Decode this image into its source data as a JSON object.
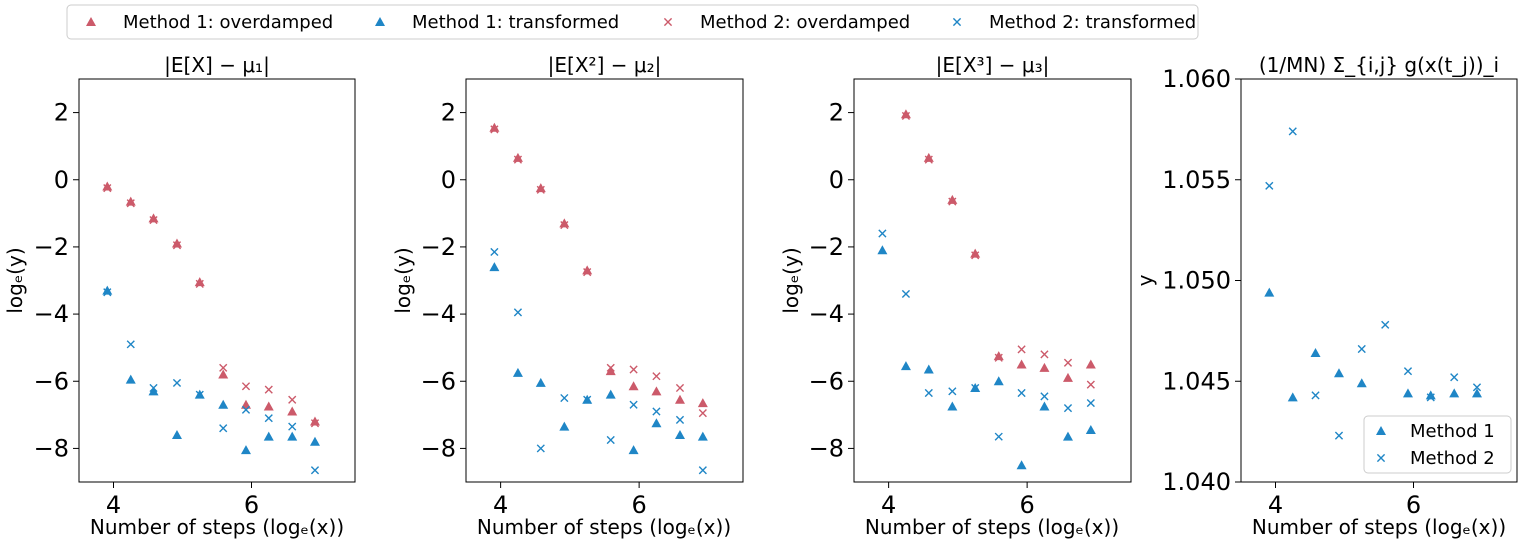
{
  "colors": {
    "overdamped": "#cc5a6a",
    "transformed": "#1f86c6"
  },
  "legend": {
    "entries": [
      {
        "label": "Method 1: overdamped",
        "marker": "triangle",
        "color_key": "overdamped"
      },
      {
        "label": "Method 1: transformed",
        "marker": "triangle",
        "color_key": "transformed"
      },
      {
        "label": "Method 2: overdamped",
        "marker": "x",
        "color_key": "overdamped"
      },
      {
        "label": "Method 2: transformed",
        "marker": "x",
        "color_key": "transformed"
      }
    ]
  },
  "chart_data": [
    {
      "type": "scatter",
      "title": "|E[X] − μ₁|",
      "xlabel": "Number of steps (logₑ(x))",
      "ylabel": "logₑ(y)",
      "xlim": [
        3.5,
        7.5
      ],
      "ylim": [
        -9,
        3
      ],
      "xticks": [
        4,
        6
      ],
      "xtick_labels": [
        "4",
        "6"
      ],
      "yticks": [
        -8,
        -6,
        -4,
        -2,
        0,
        2
      ],
      "ytick_labels": [
        "−8",
        "−6",
        "−4",
        "−2",
        "0",
        "2"
      ],
      "series": [
        {
          "name": "Method 1: overdamped",
          "marker": "triangle",
          "color_key": "overdamped",
          "x": [
            3.91,
            4.25,
            4.58,
            4.92,
            5.25,
            5.59,
            5.92,
            6.25,
            6.59,
            6.92
          ],
          "y": [
            -0.2,
            -0.65,
            -1.15,
            -1.9,
            -3.05,
            -5.8,
            -6.7,
            -6.75,
            -6.9,
            -7.2
          ]
        },
        {
          "name": "Method 1: transformed",
          "marker": "triangle",
          "color_key": "transformed",
          "x": [
            3.91,
            4.25,
            4.58,
            4.92,
            5.25,
            5.59,
            5.92,
            6.25,
            6.59,
            6.92
          ],
          "y": [
            -3.3,
            -5.95,
            -6.3,
            -7.6,
            -6.4,
            -6.7,
            -8.05,
            -7.65,
            -7.65,
            -7.8
          ]
        },
        {
          "name": "Method 2: overdamped",
          "marker": "x",
          "color_key": "overdamped",
          "x": [
            3.91,
            4.25,
            4.58,
            4.92,
            5.25,
            5.59,
            5.92,
            6.25,
            6.59,
            6.92
          ],
          "y": [
            -0.25,
            -0.7,
            -1.2,
            -1.95,
            -3.1,
            -5.6,
            -6.15,
            -6.25,
            -6.55,
            -7.25
          ]
        },
        {
          "name": "Method 2: transformed",
          "marker": "x",
          "color_key": "transformed",
          "x": [
            3.91,
            4.25,
            4.58,
            4.92,
            5.25,
            5.59,
            5.92,
            6.25,
            6.59,
            6.92
          ],
          "y": [
            -3.35,
            -4.9,
            -6.2,
            -6.05,
            -6.4,
            -7.4,
            -6.85,
            -7.1,
            -7.35,
            -8.65
          ]
        }
      ]
    },
    {
      "type": "scatter",
      "title": "|E[X²] − μ₂|",
      "xlabel": "Number of steps (logₑ(x))",
      "ylabel": "logₑ(y)",
      "xlim": [
        3.5,
        7.5
      ],
      "ylim": [
        -9,
        3
      ],
      "xticks": [
        4,
        6
      ],
      "xtick_labels": [
        "4",
        "6"
      ],
      "yticks": [
        -8,
        -6,
        -4,
        -2,
        0,
        2
      ],
      "ytick_labels": [
        "−8",
        "−6",
        "−4",
        "−2",
        "0",
        "2"
      ],
      "series": [
        {
          "name": "Method 1: overdamped",
          "marker": "triangle",
          "color_key": "overdamped",
          "x": [
            3.91,
            4.25,
            4.58,
            4.92,
            5.25,
            5.59,
            5.92,
            6.25,
            6.59,
            6.92
          ],
          "y": [
            1.55,
            0.65,
            -0.25,
            -1.3,
            -2.7,
            -5.7,
            -6.15,
            -6.3,
            -6.55,
            -6.65
          ]
        },
        {
          "name": "Method 1: transformed",
          "marker": "triangle",
          "color_key": "transformed",
          "x": [
            3.91,
            4.25,
            4.58,
            4.92,
            5.25,
            5.59,
            5.92,
            6.25,
            6.59,
            6.92
          ],
          "y": [
            -2.6,
            -5.75,
            -6.05,
            -7.35,
            -6.55,
            -6.4,
            -8.05,
            -7.25,
            -7.6,
            -7.65
          ]
        },
        {
          "name": "Method 2: overdamped",
          "marker": "x",
          "color_key": "overdamped",
          "x": [
            3.91,
            4.25,
            4.58,
            4.92,
            5.25,
            5.59,
            5.92,
            6.25,
            6.59,
            6.92
          ],
          "y": [
            1.5,
            0.6,
            -0.3,
            -1.35,
            -2.75,
            -5.6,
            -5.65,
            -5.85,
            -6.2,
            -6.95
          ]
        },
        {
          "name": "Method 2: transformed",
          "marker": "x",
          "color_key": "transformed",
          "x": [
            3.91,
            4.25,
            4.58,
            4.92,
            5.25,
            5.59,
            5.92,
            6.25,
            6.59,
            6.92
          ],
          "y": [
            -2.15,
            -3.95,
            -8.0,
            -6.5,
            -6.55,
            -7.75,
            -6.7,
            -6.9,
            -7.15,
            -8.65
          ]
        }
      ]
    },
    {
      "type": "scatter",
      "title": "|E[X³] − μ₃|",
      "xlabel": "Number of steps (logₑ(x))",
      "ylabel": "logₑ(y)",
      "xlim": [
        3.5,
        7.5
      ],
      "ylim": [
        -9,
        3
      ],
      "xticks": [
        4,
        6
      ],
      "xtick_labels": [
        "4",
        "6"
      ],
      "yticks": [
        -8,
        -6,
        -4,
        -2,
        0,
        2
      ],
      "ytick_labels": [
        "−8",
        "−6",
        "−4",
        "−2",
        "0",
        "2"
      ],
      "series": [
        {
          "name": "Method 1: overdamped",
          "marker": "triangle",
          "color_key": "overdamped",
          "x": [
            4.25,
            4.58,
            4.92,
            5.25,
            5.59,
            5.92,
            6.25,
            6.59,
            6.92
          ],
          "y": [
            1.95,
            0.65,
            -0.6,
            -2.2,
            -5.25,
            -5.5,
            -5.6,
            -5.9,
            -5.5
          ]
        },
        {
          "name": "Method 1: transformed",
          "marker": "triangle",
          "color_key": "transformed",
          "x": [
            3.91,
            4.25,
            4.58,
            4.92,
            5.25,
            5.59,
            5.92,
            6.25,
            6.59,
            6.92
          ],
          "y": [
            -2.1,
            -5.55,
            -5.65,
            -6.75,
            -6.2,
            -6.0,
            -8.5,
            -6.75,
            -7.65,
            -7.45
          ]
        },
        {
          "name": "Method 2: overdamped",
          "marker": "x",
          "color_key": "overdamped",
          "x": [
            4.25,
            4.58,
            4.92,
            5.25,
            5.59,
            5.92,
            6.25,
            6.59,
            6.92
          ],
          "y": [
            1.9,
            0.6,
            -0.65,
            -2.25,
            -5.3,
            -5.05,
            -5.2,
            -5.45,
            -6.1
          ]
        },
        {
          "name": "Method 2: transformed",
          "marker": "x",
          "color_key": "transformed",
          "x": [
            3.91,
            4.25,
            4.58,
            4.92,
            5.25,
            5.59,
            5.92,
            6.25,
            6.59,
            6.92
          ],
          "y": [
            -1.6,
            -3.4,
            -6.35,
            -6.3,
            -6.2,
            -7.65,
            -6.35,
            -6.45,
            -6.8,
            -6.65
          ]
        }
      ]
    },
    {
      "type": "scatter",
      "title": "(1/MN) Σ_{i,j} g(x(t_j))_i",
      "xlabel": "Number of steps (logₑ(x))",
      "ylabel": "y",
      "xlim": [
        3.5,
        7.5
      ],
      "ylim": [
        1.04,
        1.06
      ],
      "xticks": [
        4,
        6
      ],
      "xtick_labels": [
        "4",
        "6"
      ],
      "yticks": [
        1.04,
        1.045,
        1.05,
        1.055,
        1.06
      ],
      "ytick_labels": [
        "1.040",
        "1.045",
        "1.050",
        "1.055",
        "1.060"
      ],
      "legend_position": "lower-right",
      "legend": [
        {
          "label": "Method 1",
          "marker": "triangle",
          "color_key": "transformed"
        },
        {
          "label": "Method 2",
          "marker": "x",
          "color_key": "transformed"
        }
      ],
      "series": [
        {
          "name": "Method 1",
          "marker": "triangle",
          "color_key": "transformed",
          "x": [
            3.91,
            4.25,
            4.58,
            4.92,
            5.25,
            5.59,
            5.92,
            6.25,
            6.59,
            6.92
          ],
          "y": [
            1.0494,
            1.0442,
            1.0464,
            1.0454,
            1.0449,
            1.043,
            1.0444,
            1.0443,
            1.0444,
            1.0444
          ]
        },
        {
          "name": "Method 2",
          "marker": "x",
          "color_key": "transformed",
          "x": [
            3.91,
            4.25,
            4.58,
            4.92,
            5.25,
            5.59,
            5.92,
            6.25,
            6.59,
            6.92
          ],
          "y": [
            1.0547,
            1.0574,
            1.0443,
            1.0423,
            1.0466,
            1.0478,
            1.0455,
            1.0442,
            1.0452,
            1.0447
          ]
        }
      ]
    }
  ]
}
